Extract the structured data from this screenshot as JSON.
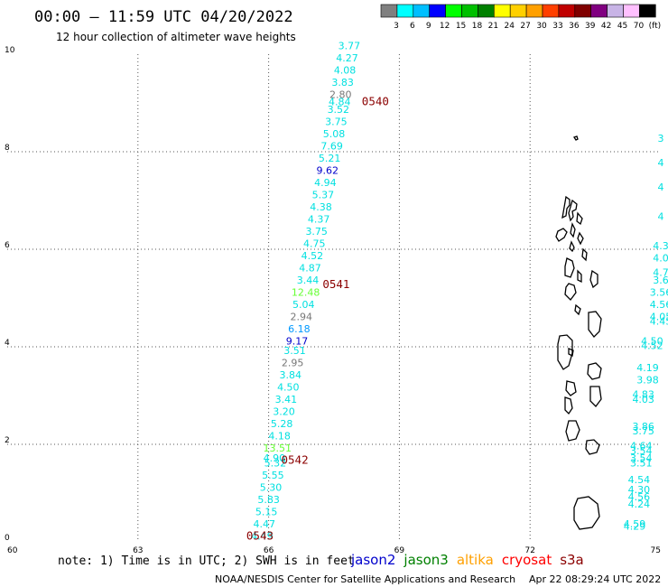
{
  "header": {
    "title": "00:00 – 11:59 UTC 04/20/2022",
    "subtitle": "12 hour collection of altimeter wave heights"
  },
  "legend": {
    "colors": [
      "#808080",
      "#00ffff",
      "#00bfff",
      "#0000ff",
      "#00ff00",
      "#00c000",
      "#008000",
      "#ffff00",
      "#ffd000",
      "#ffa000",
      "#ff4000",
      "#c00000",
      "#800000",
      "#800080",
      "#c8b4e6",
      "#ffc0ff",
      "#000000"
    ],
    "labels": [
      "3",
      "6",
      "9",
      "12",
      "15",
      "18",
      "21",
      "24",
      "27",
      "30",
      "33",
      "36",
      "39",
      "42",
      "45",
      "70",
      "(ft)"
    ]
  },
  "footer": {
    "note": "note: 1) Time is in UTC; 2) SWH is in feet",
    "satellites": [
      {
        "name": "jason2",
        "color": "#0000cc"
      },
      {
        "name": "jason3",
        "color": "#008000"
      },
      {
        "name": "altika",
        "color": "#ffa000"
      },
      {
        "name": "cryosat",
        "color": "#ff0000"
      },
      {
        "name": "s3a",
        "color": "#8b0000"
      }
    ],
    "credit": "NOAA/NESDIS Center for Satellite Applications and Research",
    "timestamp": "Apr 22 08:29:24 UTC 2022"
  },
  "chart_data": {
    "type": "scatter",
    "xlim": [
      60,
      75
    ],
    "ylim": [
      0,
      10
    ],
    "xticks": [
      "60",
      "63",
      "66",
      "69",
      "72",
      "75"
    ],
    "yticks": [
      "0",
      "2",
      "4",
      "6",
      "8",
      "10"
    ],
    "grid": true,
    "points": [
      {
        "x": 65.85,
        "y": 0.05,
        "v": "4.49",
        "c": "#00e0e0"
      },
      {
        "x": 65.9,
        "y": 0.3,
        "v": "4.47",
        "c": "#00e0e0"
      },
      {
        "x": 65.95,
        "y": 0.55,
        "v": "5.15",
        "c": "#00e0e0"
      },
      {
        "x": 66.0,
        "y": 0.8,
        "v": "5.83",
        "c": "#00e0e0"
      },
      {
        "x": 66.05,
        "y": 1.05,
        "v": "5.30",
        "c": "#00e0e0"
      },
      {
        "x": 66.1,
        "y": 1.3,
        "v": "5.55",
        "c": "#00e0e0"
      },
      {
        "x": 66.15,
        "y": 1.55,
        "v": "5.32",
        "c": "#00e0e0"
      },
      {
        "x": 66.13,
        "y": 1.65,
        "v": "4.90",
        "c": "#00e0e0"
      },
      {
        "x": 66.2,
        "y": 1.85,
        "v": "13.51",
        "c": "#66ff33"
      },
      {
        "x": 66.25,
        "y": 2.1,
        "v": "4.18",
        "c": "#00e0e0"
      },
      {
        "x": 66.3,
        "y": 2.35,
        "v": "5.28",
        "c": "#00e0e0"
      },
      {
        "x": 66.35,
        "y": 2.6,
        "v": "3.20",
        "c": "#00e0e0"
      },
      {
        "x": 66.4,
        "y": 2.85,
        "v": "3.41",
        "c": "#00e0e0"
      },
      {
        "x": 66.45,
        "y": 3.1,
        "v": "4.50",
        "c": "#00e0e0"
      },
      {
        "x": 66.5,
        "y": 3.35,
        "v": "3.84",
        "c": "#00e0e0"
      },
      {
        "x": 66.55,
        "y": 3.6,
        "v": "2.95",
        "c": "#777777"
      },
      {
        "x": 66.6,
        "y": 3.85,
        "v": "3.51",
        "c": "#00e0e0"
      },
      {
        "x": 66.65,
        "y": 4.05,
        "v": "9.17",
        "c": "#0000cc"
      },
      {
        "x": 66.7,
        "y": 4.3,
        "v": "6.18",
        "c": "#0099ff"
      },
      {
        "x": 66.75,
        "y": 4.55,
        "v": "2.94",
        "c": "#777777"
      },
      {
        "x": 66.8,
        "y": 4.8,
        "v": "5.04",
        "c": "#00e0e0"
      },
      {
        "x": 66.85,
        "y": 5.05,
        "v": "12.48",
        "c": "#66ff33"
      },
      {
        "x": 66.9,
        "y": 5.3,
        "v": "3.44",
        "c": "#00e0e0"
      },
      {
        "x": 66.95,
        "y": 5.55,
        "v": "4.87",
        "c": "#00e0e0"
      },
      {
        "x": 67.0,
        "y": 5.8,
        "v": "4.52",
        "c": "#00e0e0"
      },
      {
        "x": 67.05,
        "y": 6.05,
        "v": "4.75",
        "c": "#00e0e0"
      },
      {
        "x": 67.1,
        "y": 6.3,
        "v": "3.75",
        "c": "#00e0e0"
      },
      {
        "x": 67.15,
        "y": 6.55,
        "v": "4.37",
        "c": "#00e0e0"
      },
      {
        "x": 67.2,
        "y": 6.8,
        "v": "4.38",
        "c": "#00e0e0"
      },
      {
        "x": 67.25,
        "y": 7.05,
        "v": "5.37",
        "c": "#00e0e0"
      },
      {
        "x": 67.3,
        "y": 7.3,
        "v": "4.94",
        "c": "#00e0e0"
      },
      {
        "x": 67.35,
        "y": 7.55,
        "v": "9.62",
        "c": "#0000cc"
      },
      {
        "x": 67.4,
        "y": 7.8,
        "v": "5.21",
        "c": "#00e0e0"
      },
      {
        "x": 67.45,
        "y": 8.05,
        "v": "7.69",
        "c": "#00e0e0"
      },
      {
        "x": 67.5,
        "y": 8.3,
        "v": "5.08",
        "c": "#00e0e0"
      },
      {
        "x": 67.55,
        "y": 8.55,
        "v": "3.75",
        "c": "#00e0e0"
      },
      {
        "x": 67.6,
        "y": 8.8,
        "v": "3.52",
        "c": "#00e0e0"
      },
      {
        "x": 67.63,
        "y": 8.95,
        "v": "4.84",
        "c": "#00e0e0"
      },
      {
        "x": 67.65,
        "y": 9.1,
        "v": "2.80",
        "c": "#777777"
      },
      {
        "x": 67.7,
        "y": 9.35,
        "v": "3.83",
        "c": "#00e0e0"
      },
      {
        "x": 67.75,
        "y": 9.6,
        "v": "4.08",
        "c": "#00e0e0"
      },
      {
        "x": 67.8,
        "y": 9.85,
        "v": "4.27",
        "c": "#00e0e0"
      },
      {
        "x": 67.85,
        "y": 10.1,
        "v": "3.77",
        "c": "#00e0e0"
      },
      {
        "x": 75.0,
        "y": 8.2,
        "v": "3",
        "c": "#00e0e0"
      },
      {
        "x": 75.0,
        "y": 7.7,
        "v": "4",
        "c": "#00e0e0"
      },
      {
        "x": 75.0,
        "y": 7.2,
        "v": "4",
        "c": "#00e0e0"
      },
      {
        "x": 75.0,
        "y": 6.6,
        "v": "4",
        "c": "#00e0e0"
      },
      {
        "x": 75.0,
        "y": 6.0,
        "v": "4.3",
        "c": "#00e0e0"
      },
      {
        "x": 75.0,
        "y": 5.75,
        "v": "4.0",
        "c": "#00e0e0"
      },
      {
        "x": 75.0,
        "y": 5.45,
        "v": "4.7",
        "c": "#00e0e0"
      },
      {
        "x": 75.0,
        "y": 5.3,
        "v": "3.6",
        "c": "#00e0e0"
      },
      {
        "x": 75.0,
        "y": 5.05,
        "v": "3.56",
        "c": "#00e0e0"
      },
      {
        "x": 75.0,
        "y": 4.8,
        "v": "4.56",
        "c": "#00e0e0"
      },
      {
        "x": 75.0,
        "y": 4.55,
        "v": "4.05",
        "c": "#00e0e0"
      },
      {
        "x": 75.0,
        "y": 4.45,
        "v": "4.45",
        "c": "#00e0e0"
      },
      {
        "x": 74.8,
        "y": 4.05,
        "v": "4.50",
        "c": "#00e0e0"
      },
      {
        "x": 74.8,
        "y": 3.95,
        "v": "4.52",
        "c": "#00e0e0"
      },
      {
        "x": 74.7,
        "y": 3.5,
        "v": "4.19",
        "c": "#00e0e0"
      },
      {
        "x": 74.7,
        "y": 3.25,
        "v": "3.98",
        "c": "#00e0e0"
      },
      {
        "x": 74.6,
        "y": 2.95,
        "v": "4.83",
        "c": "#00e0e0"
      },
      {
        "x": 74.6,
        "y": 2.85,
        "v": "4.03",
        "c": "#00e0e0"
      },
      {
        "x": 74.6,
        "y": 2.3,
        "v": "3.86",
        "c": "#00e0e0"
      },
      {
        "x": 74.6,
        "y": 2.2,
        "v": "3.75",
        "c": "#00e0e0"
      },
      {
        "x": 74.55,
        "y": 1.9,
        "v": "4.64",
        "c": "#00e0e0"
      },
      {
        "x": 74.55,
        "y": 1.8,
        "v": "3.54",
        "c": "#00e0e0"
      },
      {
        "x": 74.55,
        "y": 1.65,
        "v": "3.54",
        "c": "#00e0e0"
      },
      {
        "x": 74.55,
        "y": 1.55,
        "v": "3.51",
        "c": "#00e0e0"
      },
      {
        "x": 74.5,
        "y": 1.2,
        "v": "4.54",
        "c": "#00e0e0"
      },
      {
        "x": 74.5,
        "y": 1.0,
        "v": "4.30",
        "c": "#00e0e0"
      },
      {
        "x": 74.5,
        "y": 0.85,
        "v": "4.56",
        "c": "#00e0e0"
      },
      {
        "x": 74.5,
        "y": 0.7,
        "v": "4.24",
        "c": "#00e0e0"
      },
      {
        "x": 74.4,
        "y": 0.3,
        "v": "4.59",
        "c": "#00e0e0"
      },
      {
        "x": 74.4,
        "y": 0.25,
        "v": "4.29",
        "c": "#00e0e0"
      }
    ],
    "time_labels": [
      {
        "x": 68.45,
        "y": 8.95,
        "t": "0540"
      },
      {
        "x": 67.55,
        "y": 5.2,
        "t": "0541"
      },
      {
        "x": 66.6,
        "y": 1.6,
        "t": "0542"
      },
      {
        "x": 65.8,
        "y": 0.05,
        "t": "0543"
      }
    ]
  }
}
